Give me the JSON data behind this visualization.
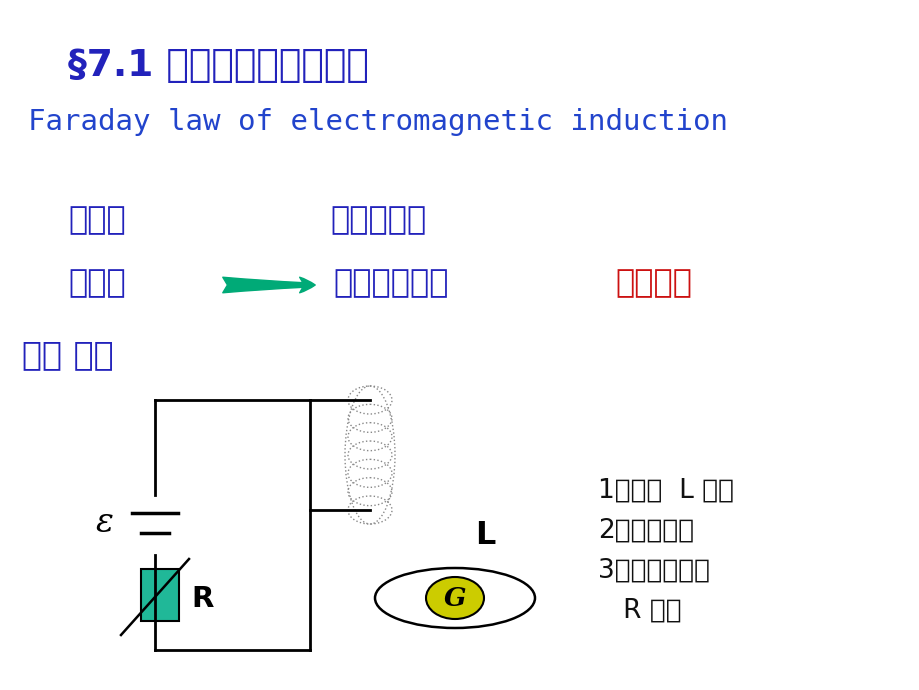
{
  "bg_color": "#ffffff",
  "title_cn": "§7.1 法拉第电磁感应定律",
  "title_en": "Faraday law of electromagnetic induction",
  "title_cn_color": "#2222bb",
  "title_en_color": "#2244cc",
  "oersted": "奥斯特",
  "mag_effect": "电流磁效应",
  "symmetry": "对称性",
  "mag_elec": "磁的电效应？",
  "ten_years": "历经十年",
  "ten_years_color": "#cc1111",
  "phenomenon": "一． 现象",
  "blue_color": "#2222bb",
  "teal_arrow_color": "#00aa77",
  "item1": "1）回路  L 运动",
  "item2": "2）场源运动",
  "item3": "3）都静止，但",
  "item4": "   R 变化",
  "items_color": "#111111"
}
